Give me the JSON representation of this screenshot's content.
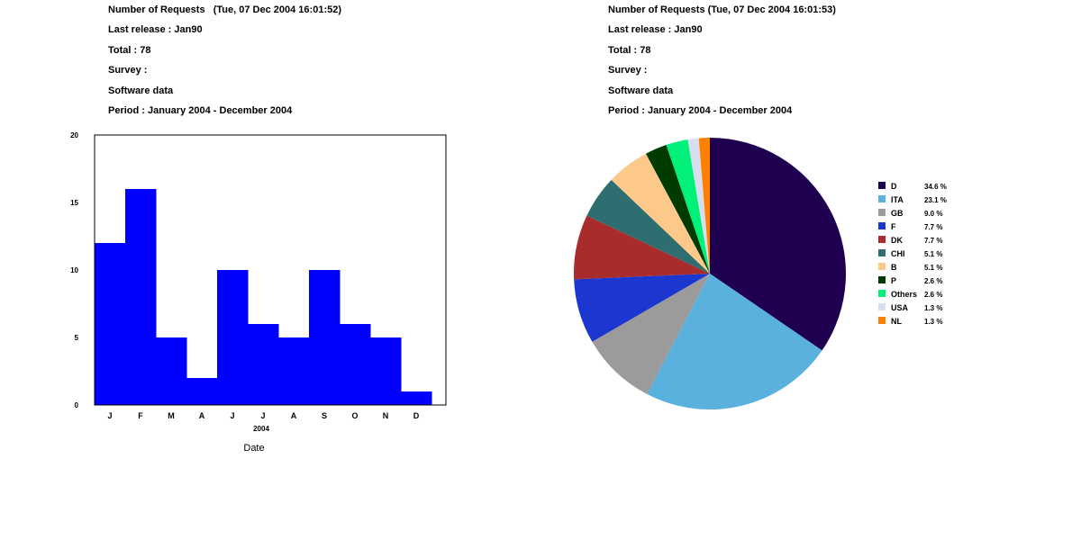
{
  "left_panel": {
    "header": {
      "title": "Number of Requests   (Tue, 07 Dec 2004 16:01:52)",
      "last_release": "Last release : Jan90",
      "total": "Total : 78",
      "survey": "Survey :",
      "data_type": "Software data",
      "period": "Period : January 2004 - December 2004"
    }
  },
  "right_panel": {
    "header": {
      "title": "Number of Requests (Tue, 07 Dec 2004 16:01:53)",
      "last_release": "Last release : Jan90",
      "total": "Total : 78",
      "survey": "Survey :",
      "data_type": "Software data",
      "period": "Period : January 2004 - December 2004"
    }
  },
  "chart_data": [
    {
      "type": "bar",
      "categories": [
        "J",
        "F",
        "M",
        "A",
        "J",
        "J",
        "A",
        "S",
        "O",
        "N",
        "D"
      ],
      "values": [
        12,
        16,
        5,
        2,
        10,
        6,
        5,
        10,
        6,
        5,
        1
      ],
      "xlabel": "Date",
      "x_group_label": "2004",
      "ylim": [
        0,
        20
      ],
      "yticks": [
        0,
        5,
        10,
        15,
        20
      ],
      "bar_color": "#0000ff",
      "grid": false
    },
    {
      "type": "pie",
      "legend_position": "right",
      "start": "top",
      "direction": "clockwise",
      "slices": [
        {
          "label": "D",
          "value": 34.6,
          "value_label": "34.6 %",
          "color": "#1f0050"
        },
        {
          "label": "ITA",
          "value": 23.1,
          "value_label": "23.1 %",
          "color": "#5ab1de"
        },
        {
          "label": "GB",
          "value": 9.0,
          "value_label": "9.0 %",
          "color": "#9b9b9b"
        },
        {
          "label": "F",
          "value": 7.7,
          "value_label": "7.7 %",
          "color": "#1c36d0"
        },
        {
          "label": "DK",
          "value": 7.7,
          "value_label": "7.7 %",
          "color": "#a82c2c"
        },
        {
          "label": "CHI",
          "value": 5.1,
          "value_label": "5.1 %",
          "color": "#2e6e70"
        },
        {
          "label": "B",
          "value": 5.1,
          "value_label": "5.1 %",
          "color": "#fcc98a"
        },
        {
          "label": "P",
          "value": 2.6,
          "value_label": "2.6 %",
          "color": "#003b00"
        },
        {
          "label": "Others",
          "value": 2.6,
          "value_label": "2.6 %",
          "color": "#00f07a"
        },
        {
          "label": "USA",
          "value": 1.3,
          "value_label": "1.3 %",
          "color": "#d8ddf0"
        },
        {
          "label": "NL",
          "value": 1.3,
          "value_label": "1.3 %",
          "color": "#ff8000"
        }
      ]
    }
  ]
}
